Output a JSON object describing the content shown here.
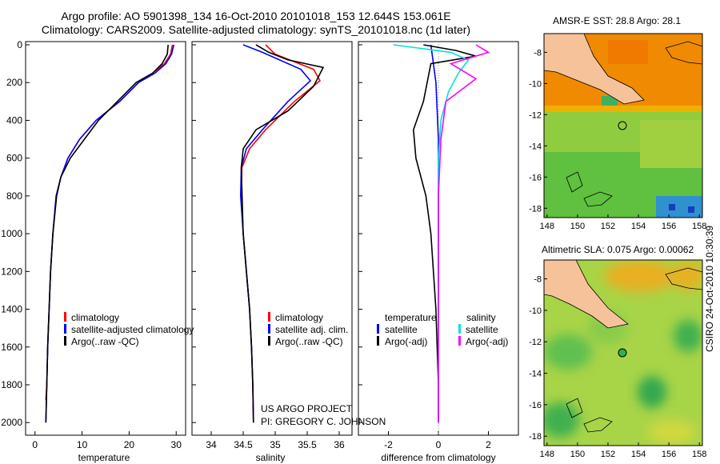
{
  "header": {
    "line1": "Argo profile: AO 5901398_134 16-Oct-2010 20101018_153 12.644S 153.061E",
    "line2": "Climatology: CARS2009. Satellite-adjusted climatology: synTS_20101018.nc (1d later)"
  },
  "credits": {
    "project": "US ARGO PROJECT",
    "pi": "PI: GREGORY C. JOHNSON"
  },
  "stamp": "CSIRO 24-Oct-2010 10:30:39",
  "colors": {
    "clim": "#ff0000",
    "sat": "#0000ff",
    "argo": "#000000",
    "sat_s": "#00e0e0",
    "argo_s": "#ff00ff"
  },
  "chart_data": [
    {
      "type": "line",
      "id": "temperature",
      "xlabel": "temperature",
      "xlim": [
        -2,
        32
      ],
      "ylim": [
        0,
        2050
      ],
      "y_reversed": true,
      "xticks": [
        0,
        10,
        20,
        30
      ],
      "yticks": [
        0,
        200,
        400,
        600,
        800,
        1000,
        1200,
        1400,
        1600,
        1800,
        2000
      ],
      "series": [
        {
          "name": "climatology",
          "color": "#ff0000",
          "x": [
            29.2,
            28.8,
            27.5,
            25,
            22,
            18,
            13,
            9.5,
            7,
            5.5,
            4.5,
            3.8,
            3.3,
            3.0,
            2.7,
            2.5,
            2.3
          ],
          "y": [
            0,
            50,
            100,
            150,
            200,
            300,
            400,
            500,
            600,
            700,
            800,
            1000,
            1200,
            1400,
            1600,
            1800,
            1880
          ]
        },
        {
          "name": "satellite-adjusted climatology",
          "color": "#0000ff",
          "x": [
            29.5,
            29.0,
            27.8,
            25.5,
            22,
            18,
            13,
            9.5,
            7,
            5.5,
            4.5,
            3.8,
            3.3,
            3.0,
            2.7,
            2.5,
            2.3
          ],
          "y": [
            0,
            50,
            100,
            150,
            200,
            300,
            400,
            500,
            600,
            700,
            800,
            1000,
            1200,
            1400,
            1600,
            1800,
            2000
          ]
        },
        {
          "name": "Argo(..raw -QC)",
          "color": "#000000",
          "x": [
            28.3,
            28.1,
            27.0,
            25.0,
            21.5,
            17.5,
            13.5,
            10.5,
            7.5,
            5.5,
            4.6,
            3.8,
            3.3,
            3.0,
            2.7,
            2.5,
            2.3
          ],
          "y": [
            0,
            50,
            100,
            150,
            200,
            300,
            400,
            500,
            600,
            700,
            800,
            1000,
            1200,
            1400,
            1600,
            1800,
            2000
          ]
        }
      ],
      "legend": [
        "climatology",
        "satellite-adjusted climatology",
        "Argo(..raw -QC)"
      ]
    },
    {
      "type": "line",
      "id": "salinity",
      "xlabel": "salinity",
      "xlim": [
        33.7,
        36.2
      ],
      "ylim": [
        0,
        2050
      ],
      "y_reversed": true,
      "xticks": [
        34,
        34.5,
        35,
        35.5,
        36
      ],
      "series": [
        {
          "name": "climatology",
          "color": "#ff0000",
          "x": [
            34.85,
            35.0,
            35.6,
            35.7,
            35.3,
            34.85,
            34.6,
            34.48,
            34.47,
            34.5,
            34.55,
            34.6,
            34.63,
            34.65,
            34.66
          ],
          "y": [
            0,
            50,
            130,
            190,
            300,
            450,
            550,
            650,
            800,
            1000,
            1200,
            1400,
            1600,
            1800,
            1990
          ]
        },
        {
          "name": "satellite adj. clim.",
          "color": "#0000ff",
          "x": [
            34.5,
            34.8,
            35.4,
            35.55,
            35.2,
            34.8,
            34.55,
            34.47,
            34.46,
            34.5,
            34.55,
            34.6,
            34.63,
            34.65,
            34.66
          ],
          "y": [
            0,
            40,
            130,
            190,
            300,
            450,
            550,
            650,
            800,
            1000,
            1200,
            1400,
            1600,
            1800,
            2000
          ]
        },
        {
          "name": "Argo(..raw -QC)",
          "color": "#000000",
          "x": [
            34.7,
            34.9,
            35.2,
            35.75,
            35.6,
            35.2,
            34.7,
            34.5,
            34.47,
            34.5,
            34.55,
            34.6,
            34.63,
            34.65,
            34.66
          ],
          "y": [
            0,
            40,
            80,
            120,
            220,
            350,
            450,
            550,
            650,
            1000,
            1200,
            1400,
            1600,
            1800,
            2000
          ]
        }
      ],
      "legend": [
        "climatology",
        "satellite adj. clim.",
        "Argo(..raw -QC)"
      ]
    },
    {
      "type": "line",
      "id": "difference",
      "xlabel": "difference from climatology",
      "xlim": [
        -3.2,
        3.2
      ],
      "ylim": [
        0,
        2050
      ],
      "y_reversed": true,
      "xticks": [
        -2,
        0,
        2
      ],
      "series": [
        {
          "name": "temperature satellite",
          "color": "#0000ff",
          "x": [
            -0.3,
            -0.1,
            0,
            0,
            0
          ],
          "y": [
            0,
            200,
            500,
            1000,
            2000
          ]
        },
        {
          "name": "temperature Argo(-adj)",
          "color": "#000000",
          "x": [
            -0.6,
            0.7,
            1.5,
            -0.3,
            -0.6,
            -1.0,
            -0.9,
            -0.5,
            -0.3,
            -0.1,
            0,
            0
          ],
          "y": [
            0,
            30,
            60,
            100,
            300,
            450,
            600,
            800,
            1000,
            1400,
            1800,
            2000
          ]
        },
        {
          "name": "salinity satellite",
          "color": "#00e0e0",
          "x": [
            -1.8,
            0.5,
            1.2,
            0.8,
            0.4,
            0.1,
            0,
            0,
            0
          ],
          "y": [
            0,
            40,
            80,
            150,
            250,
            400,
            600,
            1000,
            2000
          ]
        },
        {
          "name": "salinity Argo(-adj)",
          "color": "#ff00ff",
          "x": [
            1.5,
            2.0,
            0.5,
            1.5,
            0.3,
            0.1,
            0,
            0,
            0
          ],
          "y": [
            0,
            40,
            100,
            180,
            300,
            500,
            800,
            1200,
            2000
          ]
        }
      ],
      "legend_headers": [
        "temperature",
        "salinity"
      ],
      "legend": [
        "satellite",
        "Argo(-adj)",
        "satellite",
        "Argo(-adj)"
      ]
    },
    {
      "type": "heatmap",
      "id": "sst_map",
      "title": "AMSR-E SST: 28.8 Argo: 28.1",
      "xlim": [
        147.8,
        158.2
      ],
      "ylim": [
        -18.6,
        -6.8
      ],
      "xticks": [
        148,
        150,
        152,
        154,
        156,
        158
      ],
      "yticks": [
        -8,
        -10,
        -12,
        -14,
        -16,
        -18
      ],
      "float_position": {
        "lon": 153.061,
        "lat": -12.644
      }
    },
    {
      "type": "heatmap",
      "id": "sla_map",
      "title": "Altimetric SLA: 0.075 Argo: 0.00062",
      "xlim": [
        147.8,
        158.2
      ],
      "ylim": [
        -18.6,
        -6.8
      ],
      "xticks": [
        148,
        150,
        152,
        154,
        156,
        158
      ],
      "yticks": [
        -8,
        -10,
        -12,
        -14,
        -16,
        -18
      ],
      "float_position": {
        "lon": 153.061,
        "lat": -12.644
      }
    }
  ]
}
